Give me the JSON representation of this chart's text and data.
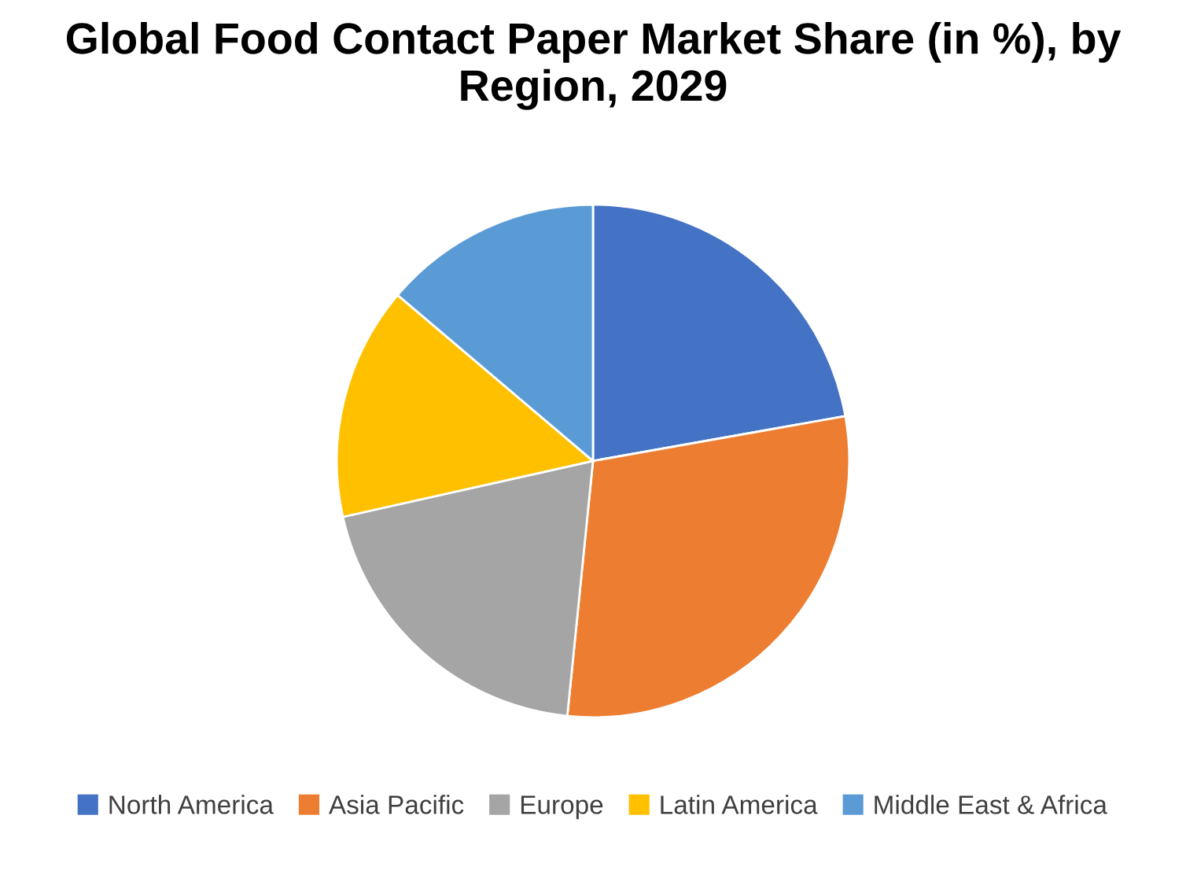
{
  "chart_data": {
    "type": "pie",
    "title": "Global Food Contact Paper Market Share (in %), by Region, 2029",
    "categories": [
      "North America",
      "Asia Pacific",
      "Europe",
      "Latin America",
      "Middle East & Africa"
    ],
    "values": [
      22.2,
      29.4,
      19.9,
      14.7,
      13.8
    ],
    "colors": [
      "#4472c4",
      "#ed7d31",
      "#a5a5a5",
      "#ffc000",
      "#5b9bd5"
    ],
    "legend": "bottom"
  }
}
